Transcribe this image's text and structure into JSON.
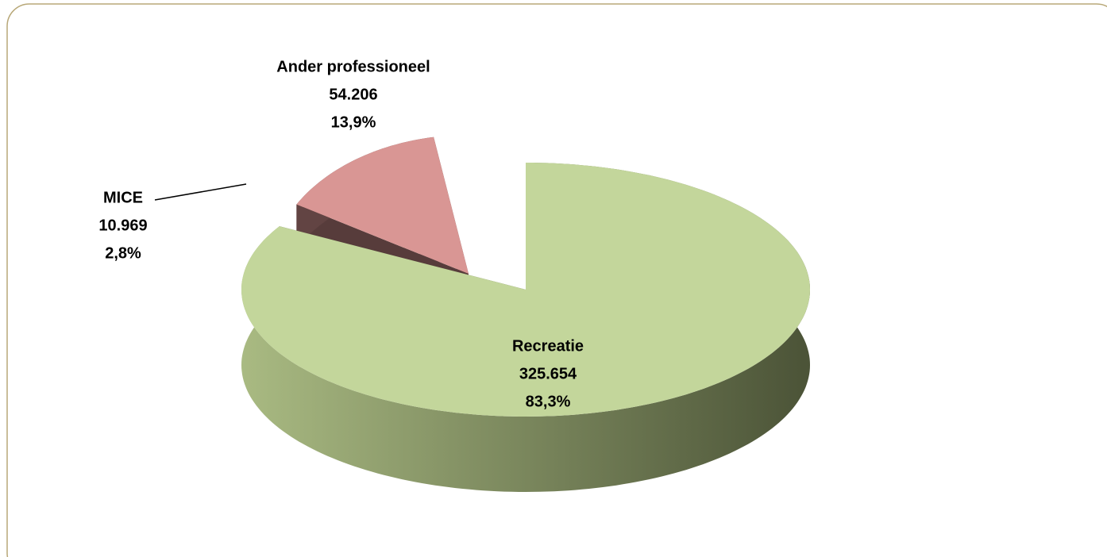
{
  "chart_data": {
    "type": "pie3d",
    "categories": [
      "Recreatie",
      "Ander professioneel",
      "MICE"
    ],
    "values": [
      325654,
      54206,
      10969
    ],
    "value_labels": [
      "325.654",
      "54.206",
      "10.969"
    ],
    "percents": [
      83.3,
      13.9,
      2.8
    ],
    "percent_labels": [
      "83,3%",
      "13,9%",
      "2,8%"
    ],
    "colors": [
      "#c3d69b",
      "#d99694",
      "#b3a2c7"
    ]
  }
}
